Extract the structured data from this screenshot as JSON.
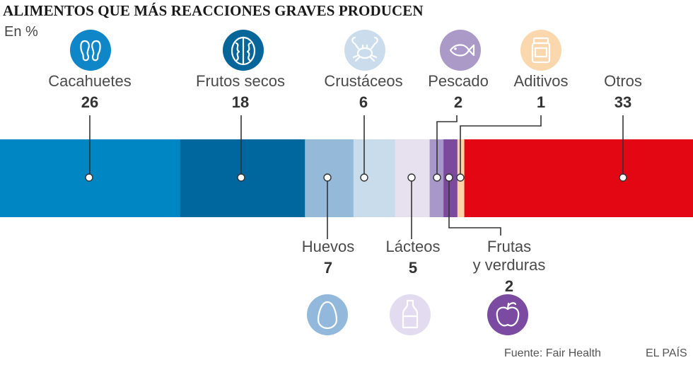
{
  "title": "ALIMENTOS QUE MÁS REACCIONES GRAVES PRODUCEN",
  "unit_label": "En %",
  "source": "Fuente: Fair Health",
  "brand": "EL PAÍS",
  "chart_data": {
    "type": "bar",
    "orientation": "horizontal-stacked",
    "title": "ALIMENTOS QUE MÁS REACCIONES GRAVES PRODUCEN",
    "unit": "En %",
    "xlim": [
      0,
      100
    ],
    "categories": [
      "Cacahuetes",
      "Frutos secos",
      "Huevos",
      "Crustáceos",
      "Lácteos",
      "Pescado",
      "Frutas y verduras",
      "Aditivos",
      "Otros"
    ],
    "values": [
      26,
      18,
      7,
      6,
      5,
      2,
      2,
      1,
      33
    ],
    "segments": [
      {
        "label": "Cacahuetes",
        "value": 26,
        "color": "#0086c3",
        "icon": "feet-icon",
        "icon_color": "#0f86c8",
        "position": "top"
      },
      {
        "label": "Frutos secos",
        "value": 18,
        "color": "#00679e",
        "icon": "walnut-icon",
        "icon_color": "#066699",
        "position": "top"
      },
      {
        "label": "Huevos",
        "value": 7,
        "color": "#95bad9",
        "icon": "egg-icon",
        "icon_color": "#92b9dc",
        "position": "bottom"
      },
      {
        "label": "Crustáceos",
        "value": 6,
        "color": "#c9dcec",
        "icon": "crab-icon",
        "icon_color": "#cbdded",
        "position": "top"
      },
      {
        "label": "Lácteos",
        "value": 5,
        "color": "#e6e0ef",
        "icon": "milk-bottle-icon",
        "icon_color": "#e3dbef",
        "position": "bottom"
      },
      {
        "label": "Pescado",
        "value": 2,
        "color": "#a897c9",
        "icon": "fish-icon",
        "icon_color": "#ab99c8",
        "position": "top"
      },
      {
        "label": "Frutas y verduras",
        "value": 2,
        "color": "#7b4a9c",
        "icon": "apple-icon",
        "icon_color": "#7b4aa1",
        "position": "bottom"
      },
      {
        "label": "Aditivos",
        "value": 1,
        "color": "#fbd3a4",
        "icon": "jar-icon",
        "icon_color": "#fbd7ad",
        "position": "top"
      },
      {
        "label": "Otros",
        "value": 33,
        "color": "#e30613",
        "icon": "",
        "icon_color": "",
        "position": "top"
      }
    ]
  }
}
